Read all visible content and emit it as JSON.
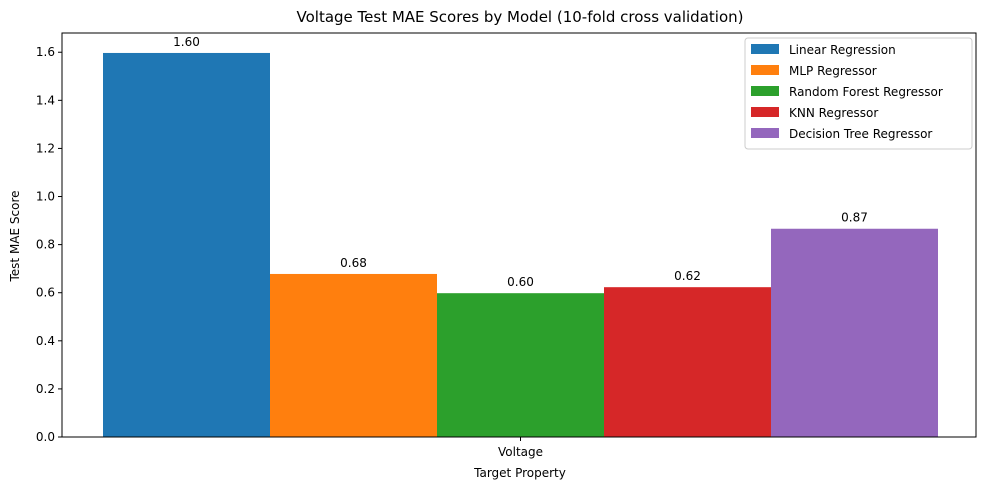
{
  "chart_data": {
    "type": "bar",
    "title": "Voltage Test MAE Scores by Model (10-fold cross validation)",
    "xlabel": "Target Property",
    "ylabel": "Test MAE Score",
    "categories": [
      "Voltage"
    ],
    "ylim": [
      0,
      1.68
    ],
    "yticks": [
      "0.0",
      "0.2",
      "0.4",
      "0.6",
      "0.8",
      "1.0",
      "1.2",
      "1.4",
      "1.6"
    ],
    "legend_position": "top-right",
    "grid": false,
    "series": [
      {
        "name": "Linear Regression",
        "values": [
          1.597
        ],
        "label": "1.60",
        "color": "#1f77b4"
      },
      {
        "name": "MLP Regressor",
        "values": [
          0.678
        ],
        "label": "0.68",
        "color": "#ff7f0e"
      },
      {
        "name": "Random Forest Regressor",
        "values": [
          0.598
        ],
        "label": "0.60",
        "color": "#2ca02c"
      },
      {
        "name": "KNN Regressor",
        "values": [
          0.623
        ],
        "label": "0.62",
        "color": "#d62728"
      },
      {
        "name": "Decision Tree Regressor",
        "values": [
          0.866
        ],
        "label": "0.87",
        "color": "#9467bd"
      }
    ]
  }
}
